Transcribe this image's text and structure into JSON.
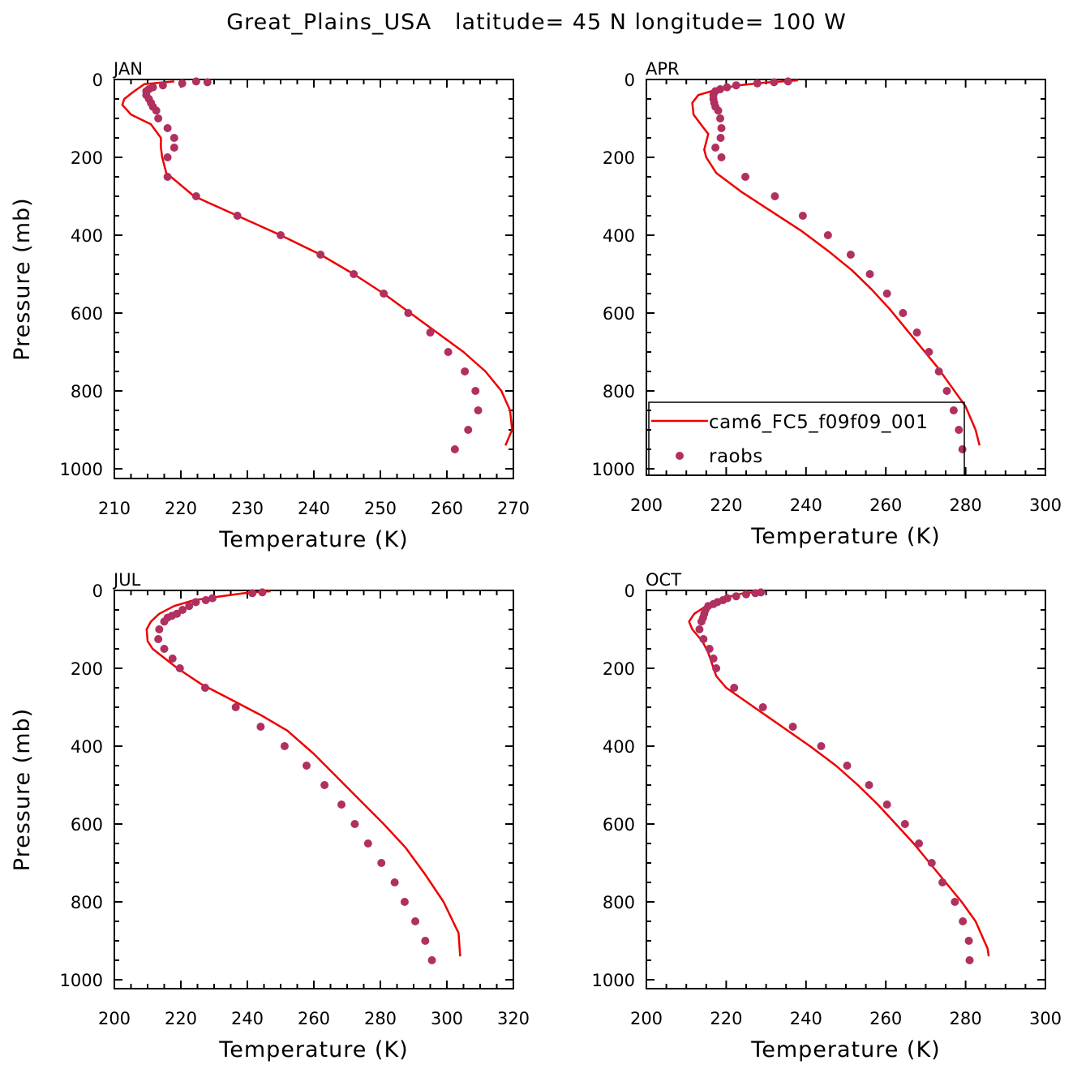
{
  "figure": {
    "title": "Great_Plains_USA   latitude= 45 N longitude= 100 W"
  },
  "colors": {
    "model_line": "#ee0000",
    "obs_marker": "#b03060",
    "axis": "#000000"
  },
  "legend": {
    "panel": "APR",
    "placement": "lower-right",
    "entries": [
      {
        "label": "cam6_FC5_f09f09_001",
        "symbol": "line"
      },
      {
        "label": "raobs",
        "symbol": "marker"
      }
    ]
  },
  "chart_data": [
    {
      "type": "line",
      "panel_label": "JAN",
      "xlabel": "Temperature (K)",
      "ylabel": "Pressure (mb)",
      "xlim": [
        210,
        270
      ],
      "xticks": [
        210,
        220,
        230,
        240,
        250,
        260,
        270
      ],
      "ylim": [
        0,
        1020
      ],
      "yticks": [
        0,
        200,
        400,
        600,
        800,
        1000
      ],
      "y_inverted": true,
      "grid": false,
      "series": [
        {
          "name": "cam6_FC5_f09f09_001",
          "kind": "line",
          "x": [
            219,
            214.5,
            213,
            211.5,
            211.2,
            212.5,
            215.5,
            217,
            217,
            217.2,
            217.8,
            222,
            228.5,
            235,
            241,
            246,
            250.5,
            254.5,
            258.5,
            262.5,
            265.8,
            268.2,
            269.5,
            269.8,
            268.8
          ],
          "y": [
            5,
            12,
            30,
            50,
            65,
            90,
            115,
            150,
            175,
            200,
            240,
            300,
            350,
            400,
            450,
            500,
            550,
            600,
            650,
            700,
            750,
            800,
            850,
            900,
            940
          ]
        },
        {
          "name": "raobs",
          "kind": "scatter",
          "x": [
            224,
            222.3,
            220.2,
            217.3,
            215.8,
            215.2,
            214.8,
            214.8,
            215.2,
            215.5,
            215.8,
            216.3,
            216.6,
            218,
            219,
            219,
            218,
            218,
            222.3,
            228.5,
            235,
            241,
            246,
            250.5,
            254.2,
            257.5,
            260.2,
            262.7,
            264.3,
            264.7,
            263.2,
            261.2
          ],
          "y": [
            7,
            5,
            10,
            15,
            20,
            25,
            30,
            40,
            50,
            60,
            70,
            80,
            100,
            125,
            150,
            175,
            200,
            250,
            300,
            350,
            400,
            450,
            500,
            550,
            600,
            650,
            700,
            750,
            800,
            850,
            900,
            950
          ]
        }
      ]
    },
    {
      "type": "line",
      "panel_label": "APR",
      "xlabel": "Temperature (K)",
      "ylabel": "",
      "xlim": [
        200,
        300
      ],
      "xticks": [
        200,
        220,
        240,
        260,
        280,
        300
      ],
      "ylim": [
        0,
        1020
      ],
      "yticks": [
        0,
        200,
        400,
        600,
        800,
        1000
      ],
      "y_inverted": true,
      "grid": false,
      "series": [
        {
          "name": "cam6_FC5_f09f09_001",
          "kind": "line",
          "x": [
            238,
            230,
            223,
            218,
            213,
            211.5,
            211.8,
            214,
            215.5,
            215,
            214.5,
            215,
            217.5,
            224,
            231.5,
            239,
            245.5,
            251.5,
            256.5,
            261,
            265,
            269,
            273,
            276.5,
            280,
            282.5,
            283.5
          ],
          "y": [
            2,
            8,
            15,
            25,
            40,
            60,
            90,
            120,
            140,
            160,
            180,
            200,
            240,
            290,
            340,
            390,
            440,
            490,
            540,
            590,
            640,
            690,
            740,
            790,
            840,
            900,
            940
          ]
        },
        {
          "name": "raobs",
          "kind": "scatter",
          "x": [
            235.5,
            232,
            227.8,
            222.5,
            220.2,
            218.5,
            217.3,
            216.8,
            216.8,
            217,
            217.3,
            218,
            218.5,
            218.8,
            218.6,
            217.3,
            218.8,
            224.8,
            232.2,
            239.2,
            245.5,
            251.2,
            256,
            260.3,
            264.3,
            267.8,
            270.8,
            273.3,
            275.3,
            277,
            278.3,
            279.2
          ],
          "y": [
            5,
            7,
            10,
            15,
            20,
            25,
            30,
            40,
            50,
            60,
            70,
            80,
            100,
            125,
            150,
            175,
            200,
            250,
            300,
            350,
            400,
            450,
            500,
            550,
            600,
            650,
            700,
            750,
            800,
            850,
            900,
            950
          ]
        }
      ]
    },
    {
      "type": "line",
      "panel_label": "JUL",
      "xlabel": "Temperature (K)",
      "ylabel": "Pressure (mb)",
      "xlim": [
        200,
        320
      ],
      "xticks": [
        200,
        220,
        240,
        260,
        280,
        300,
        320
      ],
      "ylim": [
        0,
        1020
      ],
      "yticks": [
        0,
        200,
        400,
        600,
        800,
        1000
      ],
      "y_inverted": true,
      "grid": false,
      "series": [
        {
          "name": "cam6_FC5_f09f09_001",
          "kind": "line",
          "x": [
            247,
            240,
            232,
            224,
            218,
            213.5,
            211,
            209.7,
            210,
            211.5,
            214.5,
            219,
            226,
            235,
            244,
            252,
            260,
            267,
            274,
            281,
            287.5,
            293.5,
            299,
            303.5,
            304
          ],
          "y": [
            2,
            6,
            15,
            25,
            40,
            60,
            80,
            100,
            130,
            150,
            170,
            200,
            240,
            280,
            320,
            360,
            420,
            480,
            540,
            600,
            660,
            730,
            800,
            880,
            940
          ]
        },
        {
          "name": "raobs",
          "kind": "scatter",
          "x": [
            244.5,
            241.5,
            229.5,
            227.5,
            224.5,
            222.5,
            220.5,
            218.8,
            217.3,
            216,
            215,
            213.5,
            213.2,
            215,
            217.5,
            219.7,
            227.3,
            236.5,
            244,
            251.2,
            257.8,
            263.2,
            268.3,
            272.3,
            276.3,
            280.3,
            284.3,
            287.3,
            290.5,
            293.5,
            295.5
          ],
          "y": [
            5,
            7,
            20,
            25,
            30,
            40,
            50,
            60,
            65,
            70,
            80,
            100,
            125,
            150,
            175,
            200,
            250,
            300,
            350,
            400,
            450,
            500,
            550,
            600,
            650,
            700,
            750,
            800,
            850,
            900,
            950
          ]
        }
      ]
    },
    {
      "type": "line",
      "panel_label": "OCT",
      "xlabel": "Temperature (K)",
      "ylabel": "",
      "xlim": [
        200,
        300
      ],
      "xticks": [
        200,
        220,
        240,
        260,
        280,
        300
      ],
      "ylim": [
        0,
        1020
      ],
      "yticks": [
        0,
        200,
        400,
        600,
        800,
        1000
      ],
      "y_inverted": true,
      "grid": false,
      "series": [
        {
          "name": "cam6_FC5_f09f09_001",
          "kind": "line",
          "x": [
            229,
            224,
            219,
            215,
            212,
            210.7,
            211.5,
            214,
            215.5,
            216.5,
            217.5,
            220,
            227,
            234,
            241,
            247.5,
            253,
            258,
            262.5,
            267,
            271,
            275,
            279,
            282.5,
            285.5,
            285.8
          ],
          "y": [
            2,
            8,
            20,
            40,
            60,
            80,
            100,
            130,
            160,
            190,
            220,
            250,
            300,
            350,
            400,
            450,
            500,
            550,
            600,
            650,
            700,
            750,
            800,
            850,
            920,
            940
          ]
        },
        {
          "name": "raobs",
          "kind": "scatter",
          "x": [
            228.7,
            227.3,
            225,
            222.5,
            220.3,
            219.2,
            217.8,
            216.8,
            215.5,
            214.8,
            214.5,
            214.2,
            213.8,
            213.3,
            214.3,
            215.8,
            216.8,
            217.5,
            222,
            229.2,
            236.7,
            243.8,
            250.3,
            255.8,
            260.3,
            264.8,
            268.3,
            271.5,
            274.2,
            277.3,
            279.3,
            280.8,
            281
          ],
          "y": [
            5,
            7,
            10,
            15,
            20,
            25,
            30,
            35,
            40,
            50,
            60,
            70,
            80,
            100,
            125,
            150,
            175,
            200,
            250,
            300,
            350,
            400,
            450,
            500,
            550,
            600,
            650,
            700,
            750,
            800,
            850,
            900,
            950
          ]
        }
      ]
    }
  ]
}
